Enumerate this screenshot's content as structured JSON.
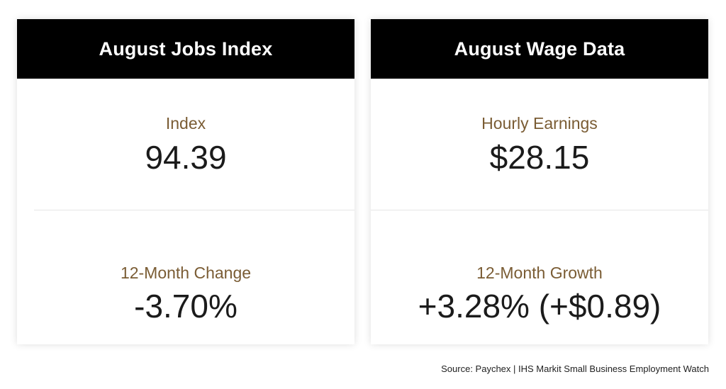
{
  "cards": [
    {
      "title": "August Jobs Index",
      "primary": {
        "label": "Index",
        "value": "94.39"
      },
      "secondary": {
        "label": "12-Month Change",
        "value": "-3.70%"
      }
    },
    {
      "title": "August Wage Data",
      "primary": {
        "label": "Hourly Earnings",
        "value": "$28.15"
      },
      "secondary": {
        "label": "12-Month Growth",
        "value": "+3.28% (+$0.89)"
      }
    }
  ],
  "source": "Source: Paychex | IHS Markit Small Business Employment Watch",
  "colors": {
    "header_bg": "#000000",
    "header_text": "#ffffff",
    "label": "#7a5c34",
    "value": "#1b1b1b"
  }
}
